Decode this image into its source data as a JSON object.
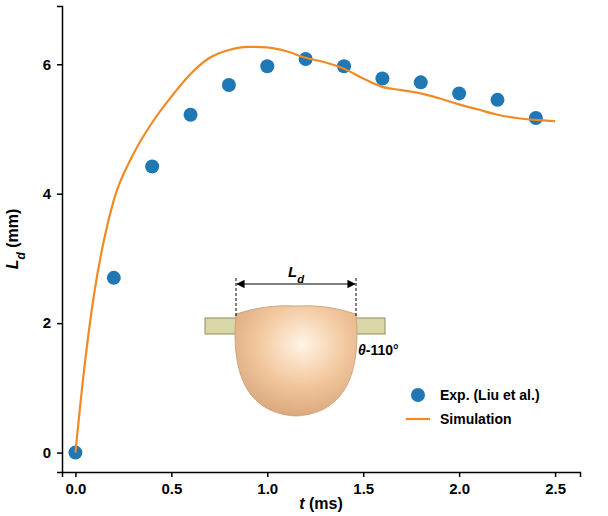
{
  "chart_data": {
    "type": "line",
    "x_label": "t (ms)",
    "y_label": "Ld (mm)",
    "xlim": [
      -0.07,
      2.63
    ],
    "ylim": [
      -0.3,
      6.9
    ],
    "xticks": [
      {
        "value": 0,
        "label": "0.0"
      },
      {
        "value": 0.5,
        "label": "0.5"
      },
      {
        "value": 1,
        "label": "1.0"
      },
      {
        "value": 1.5,
        "label": "1.5"
      },
      {
        "value": 2,
        "label": "2.0"
      },
      {
        "value": 2.5,
        "label": "2.5"
      }
    ],
    "yticks": [
      0,
      2,
      4,
      6
    ],
    "legend": "lower right",
    "annotations": [
      "Ld",
      "θ-110°"
    ],
    "series": [
      {
        "name": "Exp. (Liu et al.)",
        "type": "scatter",
        "marker": "circle",
        "color": "#1f77b4",
        "x": [
          0,
          0.2,
          0.4,
          0.6,
          0.8,
          1.0,
          1.2,
          1.4,
          1.6,
          1.8,
          2.0,
          2.2,
          2.4
        ],
        "values": [
          0,
          2.7,
          4.42,
          5.22,
          5.68,
          5.97,
          6.08,
          5.97,
          5.78,
          5.72,
          5.55,
          5.45,
          5.17
        ]
      },
      {
        "name": "Simulation",
        "type": "line",
        "line_style": "solid",
        "color": "#f08a24",
        "x": [
          0,
          0.05,
          0.1,
          0.15,
          0.2,
          0.3,
          0.4,
          0.5,
          0.6,
          0.7,
          0.8,
          0.9,
          1.0,
          1.1,
          1.2,
          1.3,
          1.4,
          1.5,
          1.6,
          1.7,
          1.8,
          1.9,
          2.0,
          2.1,
          2.2,
          2.3,
          2.4,
          2.5
        ],
        "values": [
          0,
          1.4,
          2.5,
          3.3,
          3.9,
          4.6,
          5.1,
          5.5,
          5.85,
          6.1,
          6.22,
          6.27,
          6.26,
          6.2,
          6.1,
          6.03,
          5.93,
          5.78,
          5.65,
          5.6,
          5.55,
          5.47,
          5.38,
          5.3,
          5.22,
          5.17,
          5.14,
          5.12
        ]
      }
    ]
  }
}
